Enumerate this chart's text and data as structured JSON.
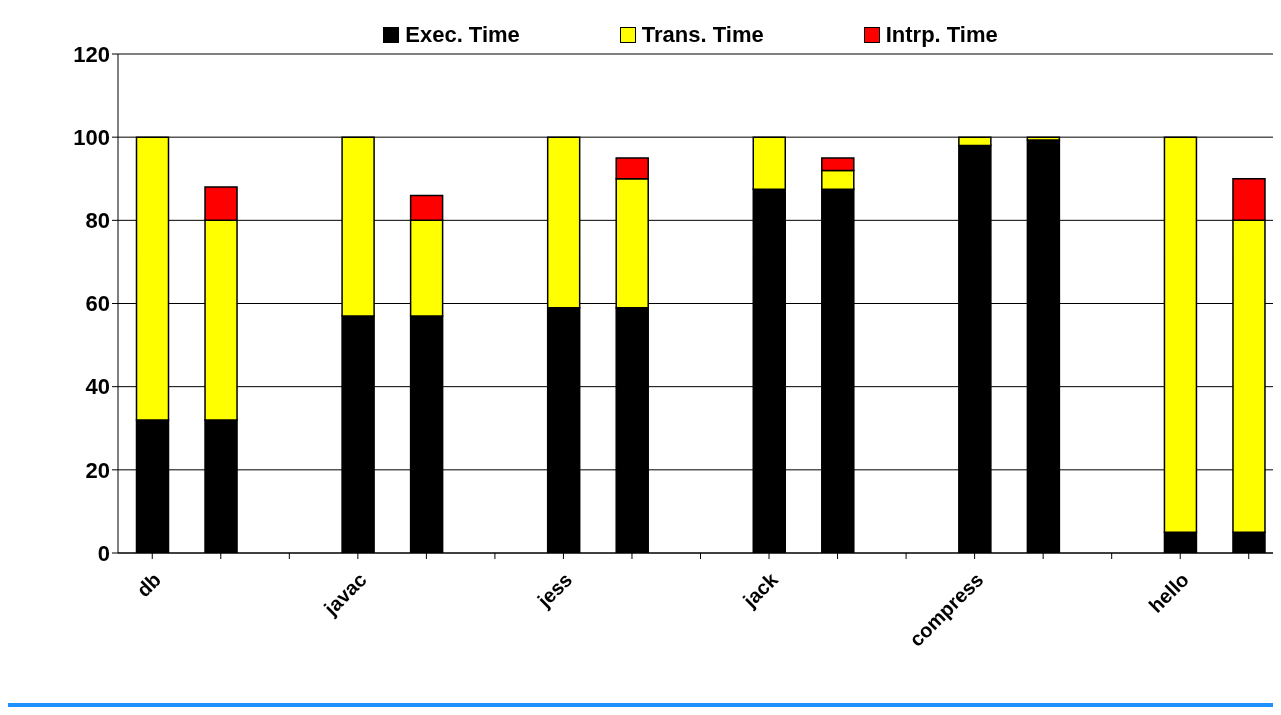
{
  "chart_data": {
    "type": "bar",
    "stacked": true,
    "categories": [
      "db",
      null,
      null,
      "javac",
      null,
      null,
      "jess",
      null,
      null,
      "jack",
      null,
      null,
      "compress",
      null,
      null,
      "hello",
      null
    ],
    "series": [
      {
        "name": "Exec. Time",
        "color": "#000000",
        "values": [
          32,
          32,
          null,
          57,
          57,
          null,
          59,
          59,
          null,
          87.5,
          87.5,
          null,
          98,
          99.3,
          null,
          5,
          5
        ]
      },
      {
        "name": "Trans. Time",
        "color": "#ffff00",
        "values": [
          68,
          48,
          null,
          43,
          23,
          null,
          41,
          31,
          null,
          12.5,
          4.5,
          null,
          2,
          0.7,
          null,
          95,
          75
        ]
      },
      {
        "name": "Intrp. Time",
        "color": "#ff0000",
        "values": [
          0,
          8,
          null,
          0,
          6,
          null,
          0,
          5,
          null,
          0,
          3,
          null,
          0,
          0,
          null,
          0,
          10
        ]
      }
    ],
    "ylim": [
      0,
      120
    ],
    "yticks": [
      0,
      20,
      40,
      60,
      80,
      100,
      120
    ],
    "grid": "y",
    "legend": "top"
  }
}
